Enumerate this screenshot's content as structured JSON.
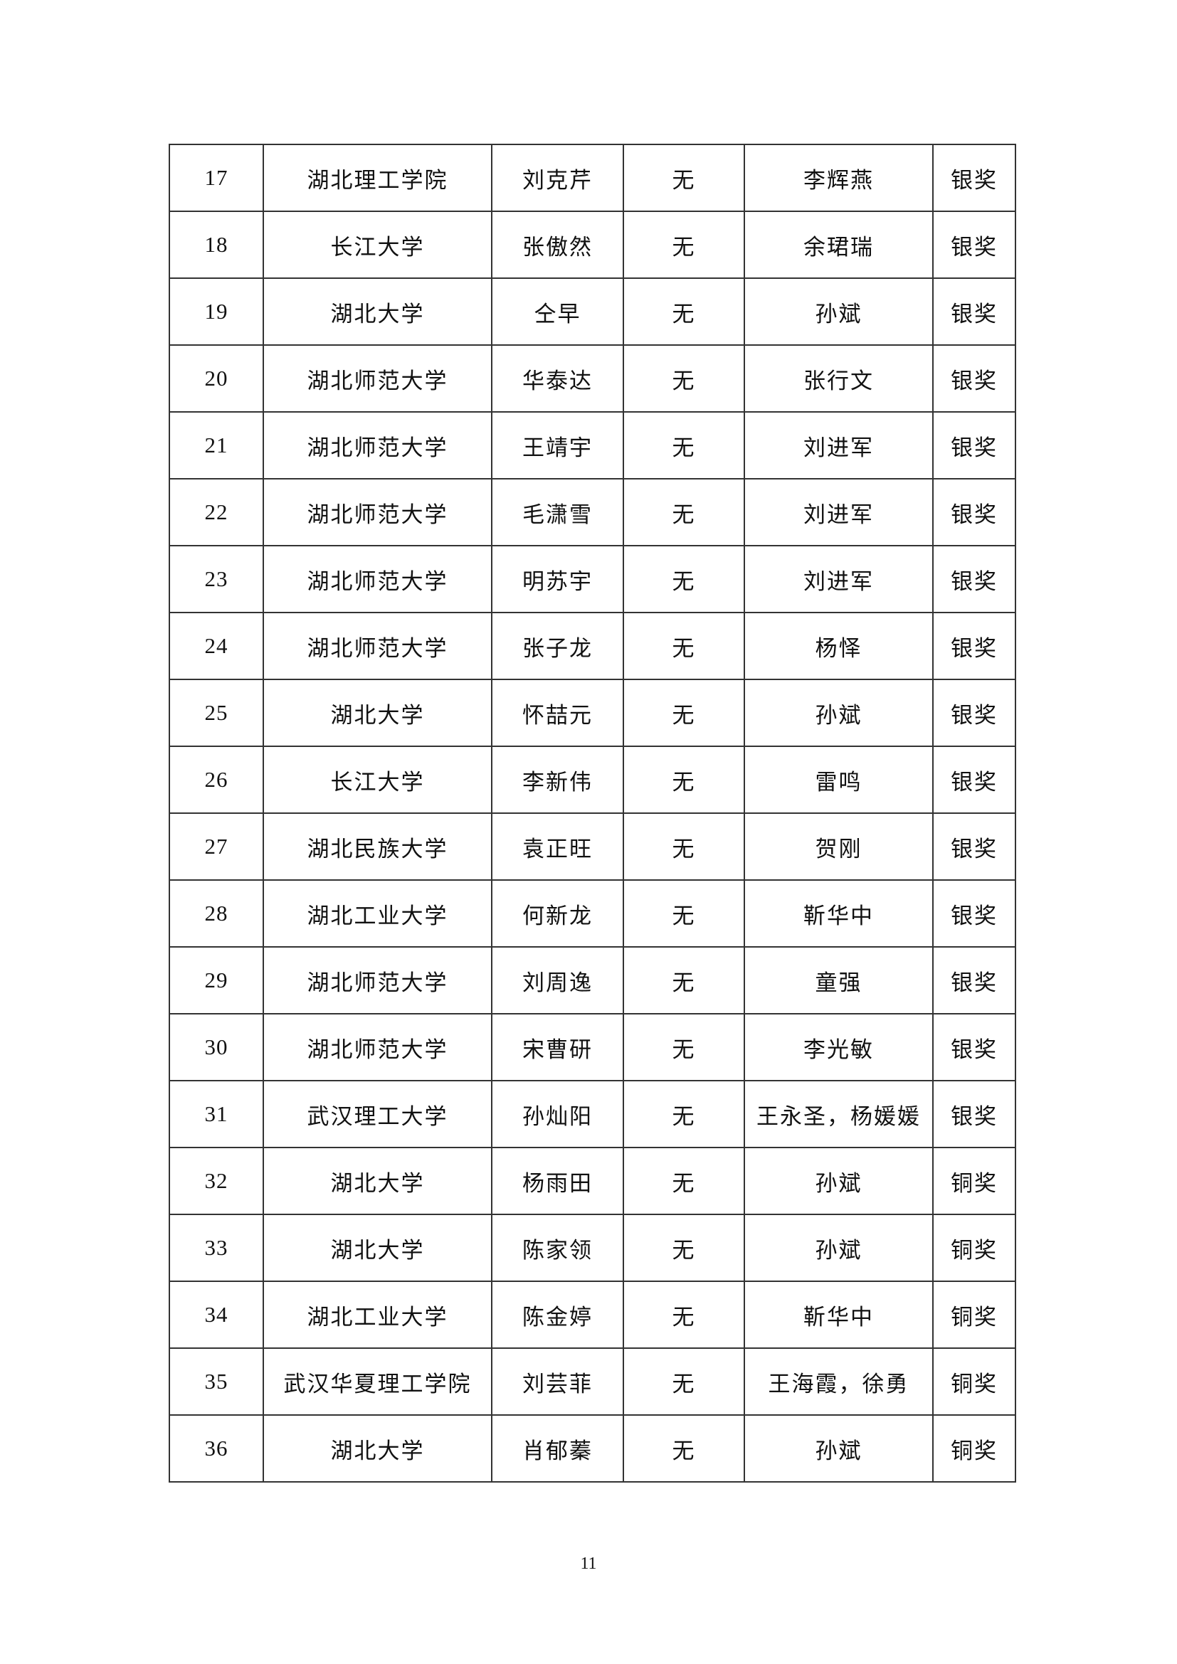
{
  "rows": [
    [
      "17",
      "湖北理工学院",
      "刘克芹",
      "无",
      "李辉燕",
      "银奖"
    ],
    [
      "18",
      "长江大学",
      "张傲然",
      "无",
      "余珺瑞",
      "银奖"
    ],
    [
      "19",
      "湖北大学",
      "仝早",
      "无",
      "孙斌",
      "银奖"
    ],
    [
      "20",
      "湖北师范大学",
      "华泰达",
      "无",
      "张行文",
      "银奖"
    ],
    [
      "21",
      "湖北师范大学",
      "王靖宇",
      "无",
      "刘进军",
      "银奖"
    ],
    [
      "22",
      "湖北师范大学",
      "毛潇雪",
      "无",
      "刘进军",
      "银奖"
    ],
    [
      "23",
      "湖北师范大学",
      "明苏宇",
      "无",
      "刘进军",
      "银奖"
    ],
    [
      "24",
      "湖北师范大学",
      "张子龙",
      "无",
      "杨怿",
      "银奖"
    ],
    [
      "25",
      "湖北大学",
      "怀喆元",
      "无",
      "孙斌",
      "银奖"
    ],
    [
      "26",
      "长江大学",
      "李新伟",
      "无",
      "雷鸣",
      "银奖"
    ],
    [
      "27",
      "湖北民族大学",
      "袁正旺",
      "无",
      "贺刚",
      "银奖"
    ],
    [
      "28",
      "湖北工业大学",
      "何新龙",
      "无",
      "靳华中",
      "银奖"
    ],
    [
      "29",
      "湖北师范大学",
      "刘周逸",
      "无",
      "童强",
      "银奖"
    ],
    [
      "30",
      "湖北师范大学",
      "宋曹研",
      "无",
      "李光敏",
      "银奖"
    ],
    [
      "31",
      "武汉理工大学",
      "孙灿阳",
      "无",
      "王永圣，杨媛媛",
      "银奖"
    ],
    [
      "32",
      "湖北大学",
      "杨雨田",
      "无",
      "孙斌",
      "铜奖"
    ],
    [
      "33",
      "湖北大学",
      "陈家领",
      "无",
      "孙斌",
      "铜奖"
    ],
    [
      "34",
      "湖北工业大学",
      "陈金婷",
      "无",
      "靳华中",
      "铜奖"
    ],
    [
      "35",
      "武汉华夏理工学院",
      "刘芸菲",
      "无",
      "王海霞，徐勇",
      "铜奖"
    ],
    [
      "36",
      "湖北大学",
      "肖郁蓁",
      "无",
      "孙斌",
      "铜奖"
    ]
  ],
  "page_number": "11"
}
